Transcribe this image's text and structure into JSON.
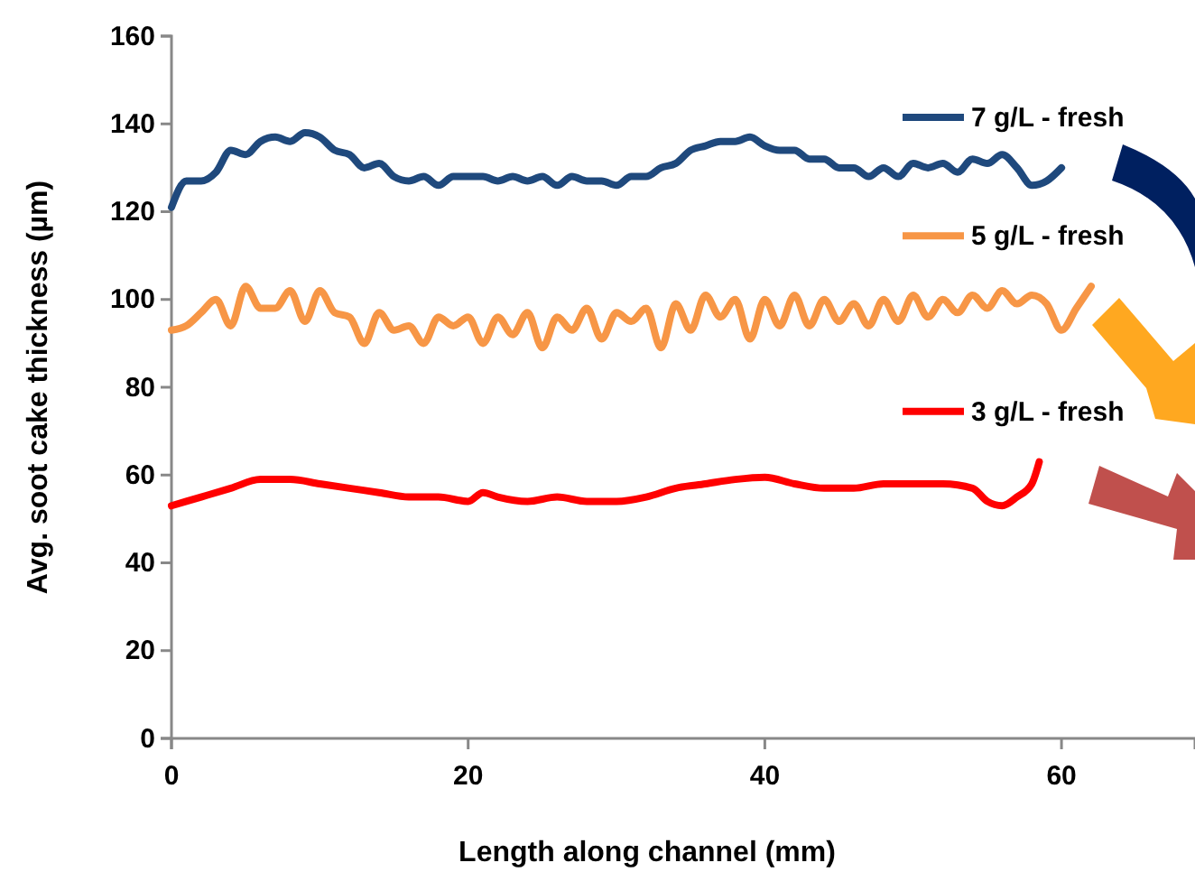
{
  "chart_data": {
    "type": "line",
    "xlabel": "Length along channel (mm)",
    "ylabel": "Avg. soot cake thickness (µm)",
    "xlim": [
      0,
      69
    ],
    "xticks": [
      0,
      20,
      40,
      60
    ],
    "ylim": [
      0,
      160
    ],
    "yticks": [
      0,
      20,
      40,
      60,
      80,
      100,
      120,
      140,
      160
    ],
    "grid": false,
    "legend": "right",
    "marker": "none",
    "line_style": "solid",
    "series": [
      {
        "name": "7  g/L - fresh",
        "color": "#1f497d",
        "x": [
          0,
          1,
          2,
          3,
          4,
          5,
          6,
          7,
          8,
          9,
          10,
          11,
          12,
          13,
          14,
          15,
          16,
          17,
          18,
          19,
          20,
          21,
          22,
          23,
          24,
          25,
          26,
          27,
          28,
          29,
          30,
          31,
          32,
          33,
          34,
          35,
          36,
          37,
          38,
          39,
          40,
          41,
          42,
          43,
          44,
          45,
          46,
          47,
          48,
          49,
          50,
          51,
          52,
          53,
          54,
          55,
          56,
          57,
          58,
          59,
          60
        ],
        "values": [
          121,
          127,
          127,
          129,
          134,
          133,
          136,
          137,
          136,
          138,
          137,
          134,
          133,
          130,
          131,
          128,
          127,
          128,
          126,
          128,
          128,
          128,
          127,
          128,
          127,
          128,
          126,
          128,
          127,
          127,
          126,
          128,
          128,
          130,
          131,
          134,
          135,
          136,
          136,
          137,
          135,
          134,
          134,
          132,
          132,
          130,
          130,
          128,
          130,
          128,
          131,
          130,
          131,
          129,
          132,
          131,
          133,
          130,
          126,
          127,
          130
        ]
      },
      {
        "name": "5 g/L - fresh",
        "color": "#f79646",
        "x": [
          0,
          1,
          2,
          3,
          4,
          5,
          6,
          7,
          8,
          9,
          10,
          11,
          12,
          13,
          14,
          15,
          16,
          17,
          18,
          19,
          20,
          21,
          22,
          23,
          24,
          25,
          26,
          27,
          28,
          29,
          30,
          31,
          32,
          33,
          34,
          35,
          36,
          37,
          38,
          39,
          40,
          41,
          42,
          43,
          44,
          45,
          46,
          47,
          48,
          49,
          50,
          51,
          52,
          53,
          54,
          55,
          56,
          57,
          58,
          59,
          60,
          61,
          62
        ],
        "values": [
          93,
          94,
          97,
          100,
          94,
          103,
          98,
          98,
          102,
          95,
          102,
          97,
          96,
          90,
          97,
          93,
          94,
          90,
          96,
          94,
          96,
          90,
          96,
          92,
          97,
          89,
          96,
          93,
          98,
          91,
          97,
          95,
          98,
          89,
          99,
          93,
          101,
          96,
          100,
          91,
          100,
          94,
          101,
          94,
          100,
          95,
          99,
          94,
          100,
          95,
          101,
          96,
          100,
          97,
          101,
          98,
          102,
          99,
          101,
          99,
          93,
          98,
          103
        ]
      },
      {
        "name": "3 g/L - fresh",
        "color": "#ff0000",
        "x": [
          0,
          2,
          4,
          6,
          8,
          10,
          12,
          14,
          16,
          18,
          20,
          21,
          22,
          24,
          26,
          28,
          30,
          32,
          34,
          36,
          38,
          40,
          42,
          44,
          46,
          48,
          50,
          52,
          54,
          55,
          56,
          57,
          58,
          58.5
        ],
        "values": [
          53,
          55,
          57,
          59,
          59,
          58,
          57,
          56,
          55,
          55,
          54,
          56,
          55,
          54,
          55,
          54,
          54,
          55,
          57,
          58,
          59,
          59.5,
          58,
          57,
          57,
          58,
          58,
          58,
          57,
          54,
          53,
          55,
          58,
          63
        ]
      }
    ]
  }
}
